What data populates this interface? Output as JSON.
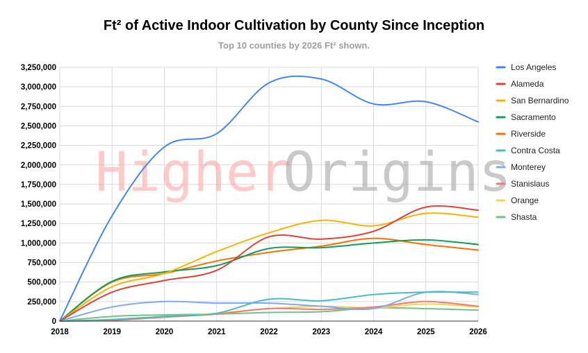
{
  "chart_data": {
    "type": "line",
    "title": "Ft² of Active Indoor Cultivation by County Since Inception",
    "subtitle": "Top 10 counties by 2026 Ft² shown.",
    "watermark": {
      "part1": "Higher",
      "part2": "Origins",
      "color1": "#ff9e9e",
      "color2": "#9e9e9e"
    },
    "x": [
      2018,
      2019,
      2020,
      2021,
      2022,
      2023,
      2024,
      2025,
      2026
    ],
    "ylim": [
      0,
      3250000
    ],
    "yticks": [
      0,
      250000,
      500000,
      750000,
      1000000,
      1250000,
      1500000,
      1750000,
      2000000,
      2250000,
      2500000,
      2750000,
      3000000,
      3250000
    ],
    "ytick_labels": [
      "0",
      "250,000",
      "500,000",
      "750,000",
      "1,000,000",
      "1,250,000",
      "1,500,000",
      "1,750,000",
      "2,000,000",
      "2,250,000",
      "2,500,000",
      "2,750,000",
      "3,000,000",
      "3,250,000"
    ],
    "grid": true,
    "legend_position": "right",
    "series": [
      {
        "name": "Los Angeles",
        "color": "#4285f4",
        "values": [
          0,
          1350000,
          2230000,
          2400000,
          3050000,
          3100000,
          2780000,
          2810000,
          2550000
        ]
      },
      {
        "name": "Alameda",
        "color": "#db4437",
        "values": [
          0,
          370000,
          520000,
          650000,
          1080000,
          1050000,
          1150000,
          1460000,
          1420000
        ]
      },
      {
        "name": "San Bernardino",
        "color": "#f4b400",
        "values": [
          0,
          440000,
          610000,
          890000,
          1130000,
          1290000,
          1220000,
          1380000,
          1330000
        ]
      },
      {
        "name": "Sacramento",
        "color": "#0f9d58",
        "values": [
          0,
          510000,
          630000,
          710000,
          930000,
          940000,
          1000000,
          1040000,
          980000
        ]
      },
      {
        "name": "Riverside",
        "color": "#ff6d01",
        "values": [
          0,
          500000,
          610000,
          770000,
          880000,
          960000,
          1060000,
          980000,
          910000
        ]
      },
      {
        "name": "Contra Costa",
        "color": "#46bdc6",
        "values": [
          0,
          20000,
          60000,
          100000,
          280000,
          260000,
          340000,
          370000,
          370000
        ]
      },
      {
        "name": "Monterey",
        "color": "#7baaf7",
        "values": [
          0,
          180000,
          250000,
          230000,
          230000,
          190000,
          160000,
          370000,
          340000
        ]
      },
      {
        "name": "Stanislaus",
        "color": "#f07b72",
        "values": [
          0,
          10000,
          50000,
          90000,
          160000,
          150000,
          180000,
          250000,
          190000
        ]
      },
      {
        "name": "Orange",
        "color": "#fcd04f",
        "values": [
          0,
          20000,
          50000,
          100000,
          160000,
          190000,
          170000,
          220000,
          180000
        ]
      },
      {
        "name": "Shasta",
        "color": "#71c287",
        "values": [
          0,
          60000,
          80000,
          90000,
          110000,
          120000,
          170000,
          160000,
          140000
        ]
      }
    ]
  }
}
